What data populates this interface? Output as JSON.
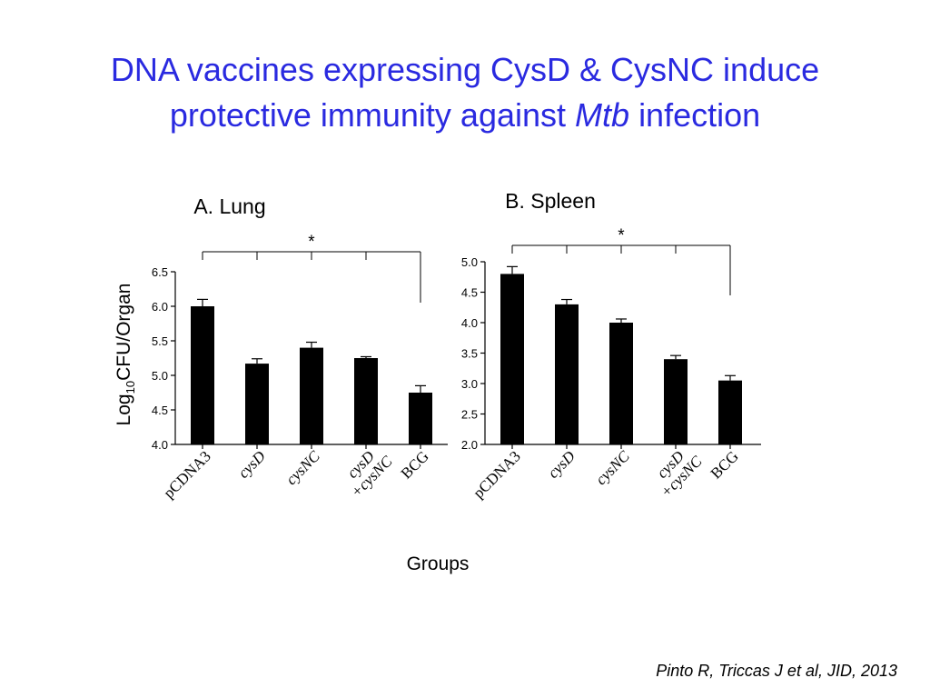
{
  "slide": {
    "title_line1": "DNA vaccines expressing CysD & CysNC induce",
    "title_line2_pre": "protective immunity against",
    "title_line2_ital": "Mtb",
    "title_line2_post": "infection",
    "citation": "Pinto R, Triccas J et al, JID, 2013",
    "shared_xlabel": "Groups",
    "shared_ylabel_main": "Log",
    "shared_ylabel_sub": "10",
    "shared_ylabel_rest": "CFU/Organ"
  },
  "chart_data": [
    {
      "type": "bar",
      "title": "A. Lung",
      "categories": [
        [
          "pCDNA3"
        ],
        [
          "cysD"
        ],
        [
          "cysNC"
        ],
        [
          "cysD",
          "+cysNC"
        ],
        [
          "BCG"
        ]
      ],
      "category_italic": [
        false,
        true,
        true,
        true,
        false
      ],
      "values": [
        6.0,
        5.17,
        5.4,
        5.25,
        4.75
      ],
      "errors": [
        0.1,
        0.07,
        0.08,
        0.02,
        0.1
      ],
      "ylim": [
        4.0,
        6.5
      ],
      "yticks": [
        "4.0",
        "4.5",
        "5.0",
        "5.5",
        "6.0",
        "6.5"
      ],
      "significance": "*",
      "bar_color": "#000000"
    },
    {
      "type": "bar",
      "title": "B. Spleen",
      "categories": [
        [
          "pCDNA3"
        ],
        [
          "cysD"
        ],
        [
          "cysNC"
        ],
        [
          "cysD",
          "+cysNC"
        ],
        [
          "BCG"
        ]
      ],
      "category_italic": [
        false,
        true,
        true,
        true,
        false
      ],
      "values": [
        4.8,
        4.3,
        4.0,
        3.4,
        3.05
      ],
      "errors": [
        0.12,
        0.08,
        0.06,
        0.06,
        0.08
      ],
      "ylim": [
        2.0,
        5.0
      ],
      "yticks": [
        "2.0",
        "2.5",
        "3.0",
        "3.5",
        "4.0",
        "4.5",
        "5.0"
      ],
      "significance": "*",
      "bar_color": "#000000"
    }
  ]
}
